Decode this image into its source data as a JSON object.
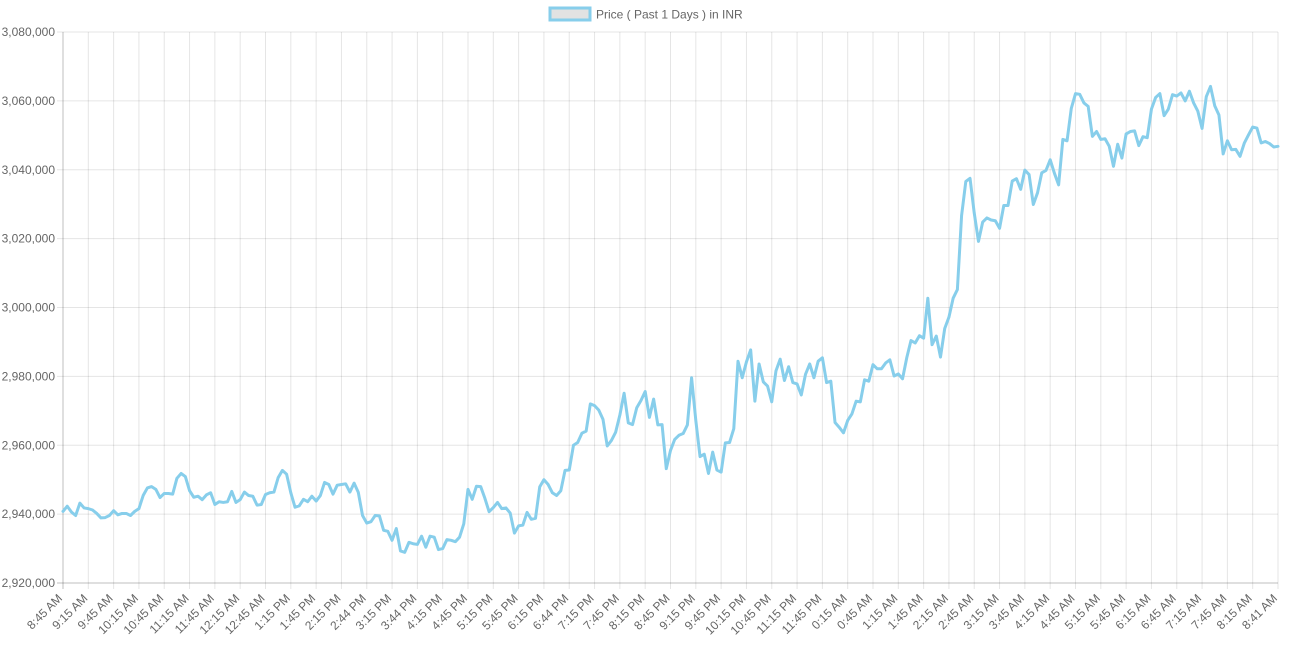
{
  "chart_data": {
    "type": "line",
    "legend": {
      "label": "Price ( Past 1 Days ) in INR",
      "position": "top-center"
    },
    "x_tick_labels": [
      "8:45 AM",
      "9:15 AM",
      "9:45 AM",
      "10:15 AM",
      "10:45 AM",
      "11:15 AM",
      "11:45 AM",
      "12:15 AM",
      "12:45 AM",
      "1:15 PM",
      "1:45 PM",
      "2:15 PM",
      "2:44 PM",
      "3:15 PM",
      "3:44 PM",
      "4:15 PM",
      "4:45 PM",
      "5:15 PM",
      "5:45 PM",
      "6:15 PM",
      "6:44 PM",
      "7:15 PM",
      "7:45 PM",
      "8:15 PM",
      "8:45 PM",
      "9:15 PM",
      "9:45 PM",
      "10:15 PM",
      "10:45 PM",
      "11:15 PM",
      "11:45 PM",
      "0:15 AM",
      "0:45 AM",
      "1:15 AM",
      "1:45 AM",
      "2:15 AM",
      "2:45 AM",
      "3:15 AM",
      "3:45 AM",
      "4:15 AM",
      "4:45 AM",
      "5:15 AM",
      "5:45 AM",
      "6:15 AM",
      "6:45 AM",
      "7:15 AM",
      "7:45 AM",
      "8:15 AM",
      "8:41 AM"
    ],
    "y_tick_labels": [
      "2,920,000",
      "2,940,000",
      "2,960,000",
      "2,980,000",
      "3,000,000",
      "3,020,000",
      "3,040,000",
      "3,060,000",
      "3,080,000"
    ],
    "ylim": [
      2920000,
      3080000
    ],
    "y_step": 20000,
    "grid": true,
    "series": [
      {
        "name": "Price ( Past 1 Days ) in INR",
        "color": "#87ceeb",
        "values": [
          2940800,
          2942300,
          2940600,
          2939600,
          2943200,
          2941800,
          2941600,
          2941200,
          2940200,
          2938900,
          2939000,
          2939600,
          2941000,
          2939800,
          2940200,
          2940200,
          2939600,
          2940800,
          2941600,
          2945400,
          2947600,
          2948000,
          2947200,
          2944800,
          2946000,
          2946000,
          2945800,
          2950400,
          2951800,
          2950900,
          2946800,
          2944900,
          2945200,
          2944200,
          2945600,
          2946200,
          2942800,
          2943600,
          2943400,
          2943600,
          2946600,
          2943400,
          2944200,
          2946400,
          2945400,
          2945200,
          2942600,
          2942800,
          2945700,
          2946200,
          2946400,
          2950600,
          2952700,
          2951600,
          2946200,
          2942000,
          2942400,
          2944300,
          2943600,
          2945200,
          2943800,
          2945400,
          2949200,
          2948600,
          2945800,
          2948400,
          2948600,
          2948800,
          2946400,
          2949000,
          2946300,
          2939600,
          2937400,
          2937800,
          2939600,
          2939500,
          2935300,
          2935000,
          2932400,
          2935800,
          2929300,
          2928900,
          2931800,
          2931400,
          2931200,
          2933600,
          2930400,
          2933600,
          2933300,
          2929700,
          2930000,
          2932600,
          2932400,
          2932000,
          2933300,
          2937200,
          2947200,
          2944300,
          2948100,
          2948000,
          2944600,
          2940700,
          2941900,
          2943400,
          2941600,
          2941800,
          2940300,
          2934500,
          2936600,
          2936800,
          2940500,
          2938500,
          2938800,
          2947900,
          2950000,
          2948600,
          2946200,
          2945400,
          2946800,
          2952700,
          2952800,
          2960000,
          2960800,
          2963500,
          2964100,
          2972000,
          2971500,
          2970200,
          2967500,
          2959800,
          2961400,
          2963800,
          2968800,
          2975100,
          2966500,
          2966000,
          2970900,
          2973000,
          2975600,
          2968100,
          2973400,
          2965900,
          2966000,
          2953200,
          2958500,
          2961700,
          2962900,
          2963400,
          2965900,
          2979600,
          2967200,
          2956700,
          2957400,
          2951800,
          2958000,
          2952800,
          2952200,
          2960700,
          2960800,
          2964800,
          2984400,
          2979600,
          2984200,
          2987700,
          2972800,
          2983600,
          2978400,
          2977200,
          2972600,
          2981600,
          2985000,
          2978800,
          2982800,
          2978200,
          2977800,
          2974600,
          2980600,
          2983600,
          2979600,
          2984400,
          2985400,
          2978200,
          2978600,
          2966600,
          2965200,
          2963600,
          2967200,
          2969100,
          2972800,
          2972600,
          2979000,
          2978600,
          2983400,
          2982200,
          2982200,
          2983900,
          2984800,
          2980100,
          2980700,
          2979300,
          2985400,
          2990400,
          2989700,
          2991800,
          2991100,
          3002700,
          2989200,
          2991700,
          2985600,
          2993900,
          2997200,
          3002700,
          3005200,
          3026700,
          3036600,
          3037500,
          3027400,
          3019200,
          3024800,
          3026000,
          3025400,
          3025200,
          3023000,
          3029600,
          3029600,
          3036700,
          3037400,
          3034300,
          3039900,
          3038600,
          3029900,
          3033300,
          3039100,
          3039800,
          3042900,
          3039000,
          3035600,
          3048800,
          3048400,
          3057800,
          3062100,
          3061900,
          3059400,
          3058400,
          3049700,
          3051100,
          3048800,
          3049000,
          3046800,
          3041000,
          3047400,
          3043400,
          3050400,
          3051100,
          3051300,
          3047000,
          3049600,
          3049300,
          3057600,
          3061000,
          3062100,
          3055700,
          3057600,
          3061800,
          3061400,
          3062300,
          3060000,
          3062800,
          3059400,
          3057000,
          3052000,
          3061200,
          3064200,
          3058600,
          3055900,
          3044600,
          3048400,
          3045800,
          3045900,
          3043900,
          3047700,
          3050100,
          3052400,
          3052100,
          3047800,
          3048200,
          3047600,
          3046600,
          3046800
        ]
      }
    ]
  }
}
